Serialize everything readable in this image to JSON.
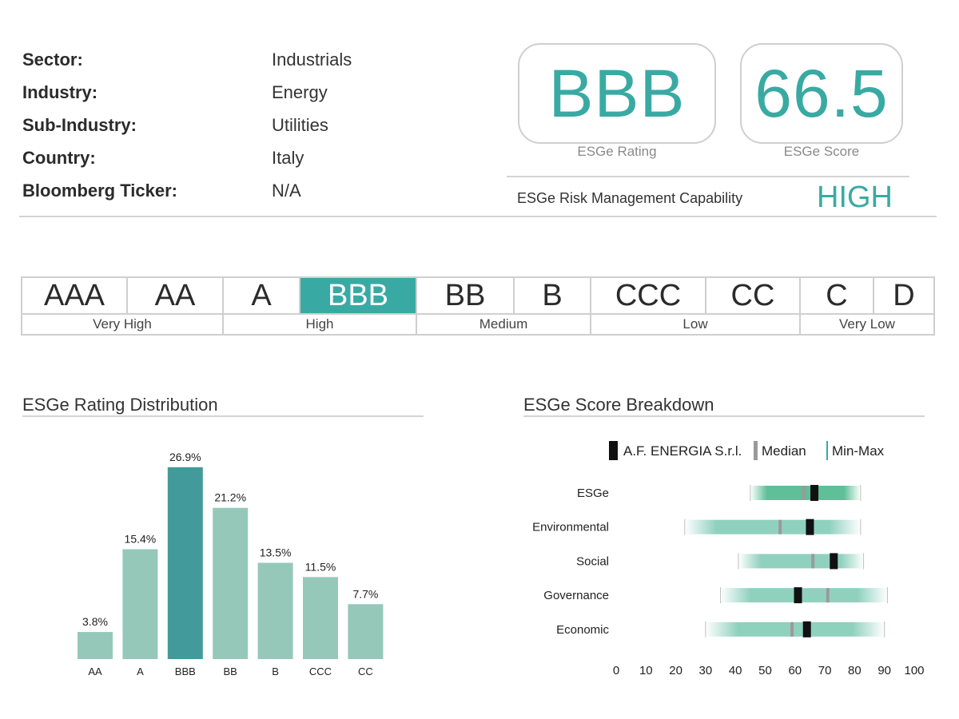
{
  "company_info": [
    {
      "label": "Sector:",
      "value": "Industrials"
    },
    {
      "label": "Industry:",
      "value": "Energy"
    },
    {
      "label": "Sub-Industry:",
      "value": "Utilities"
    },
    {
      "label": "Country:",
      "value": "Italy"
    },
    {
      "label": "Bloomberg Ticker:",
      "value": "N/A"
    }
  ],
  "rating_card": {
    "value": "BBB",
    "label": "ESGe Rating"
  },
  "score_card": {
    "value": "66.5",
    "label": "ESGe Score"
  },
  "risk_capability": {
    "label": "ESGe Risk Management Capability",
    "value": "HIGH"
  },
  "colors": {
    "accent": "#39aaa3",
    "bar_light": "#96c8b9",
    "bar_dark": "#429b9a",
    "range_fill": "#8fd1bd",
    "median": "#9a9a9a",
    "company": "#111111"
  },
  "rating_scale": {
    "grades": [
      "AAA",
      "AA",
      "A",
      "BBB",
      "BB",
      "B",
      "CCC",
      "CC",
      "C",
      "D"
    ],
    "selected": "BBB",
    "groups": [
      {
        "label": "Very High",
        "grades": [
          "AAA",
          "AA"
        ]
      },
      {
        "label": "High",
        "grades": [
          "A",
          "BBB"
        ]
      },
      {
        "label": "Medium",
        "grades": [
          "BB",
          "B"
        ]
      },
      {
        "label": "Low",
        "grades": [
          "CCC",
          "CC"
        ]
      },
      {
        "label": "Very Low",
        "grades": [
          "C",
          "D"
        ]
      }
    ]
  },
  "distribution_title": "ESGe Rating Distribution",
  "breakdown_title": "ESGe Score Breakdown",
  "chart_data": [
    {
      "type": "bar",
      "title": "ESGe Rating Distribution",
      "categories": [
        "AA",
        "A",
        "BBB",
        "BB",
        "B",
        "CCC",
        "CC"
      ],
      "values": [
        3.8,
        15.4,
        26.9,
        21.2,
        13.5,
        11.5,
        7.7
      ],
      "labels": [
        "3.8%",
        "15.4%",
        "26.9%",
        "21.2%",
        "13.5%",
        "11.5%",
        "7.7%"
      ],
      "highlight": "BBB",
      "ylim": [
        0,
        28
      ],
      "grid": false
    },
    {
      "type": "range",
      "title": "ESGe Score Breakdown",
      "legend": [
        "A.F. ENERGIA S.r.l.",
        "Median",
        "Min-Max"
      ],
      "categories": [
        "ESGe",
        "Environmental",
        "Social",
        "Governance",
        "Economic"
      ],
      "min": [
        45,
        23,
        41,
        35,
        30
      ],
      "max": [
        82,
        82,
        83,
        91,
        90
      ],
      "median": [
        63,
        55,
        66,
        71,
        59
      ],
      "company": [
        66.5,
        65,
        73,
        61,
        64
      ],
      "xticks": [
        0,
        10,
        20,
        30,
        40,
        50,
        60,
        70,
        80,
        90,
        100
      ],
      "xlim": [
        0,
        100
      ],
      "grid": false
    }
  ]
}
